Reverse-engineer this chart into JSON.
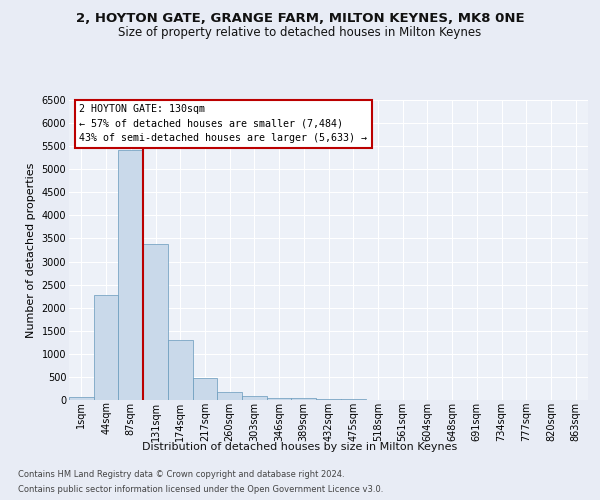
{
  "title1": "2, HOYTON GATE, GRANGE FARM, MILTON KEYNES, MK8 0NE",
  "title2": "Size of property relative to detached houses in Milton Keynes",
  "xlabel": "Distribution of detached houses by size in Milton Keynes",
  "ylabel": "Number of detached properties",
  "footer1": "Contains HM Land Registry data © Crown copyright and database right 2024.",
  "footer2": "Contains public sector information licensed under the Open Government Licence v3.0.",
  "categories": [
    "1sqm",
    "44sqm",
    "87sqm",
    "131sqm",
    "174sqm",
    "217sqm",
    "260sqm",
    "303sqm",
    "346sqm",
    "389sqm",
    "432sqm",
    "475sqm",
    "518sqm",
    "561sqm",
    "604sqm",
    "648sqm",
    "691sqm",
    "734sqm",
    "777sqm",
    "820sqm",
    "863sqm"
  ],
  "values": [
    75,
    2280,
    5420,
    3380,
    1300,
    475,
    165,
    85,
    50,
    35,
    20,
    15,
    10,
    8,
    5,
    4,
    3,
    2,
    2,
    1,
    1
  ],
  "bar_color": "#c9d9ea",
  "bar_edge_color": "#6699bb",
  "vline_color": "#bb0000",
  "annotation_line1": "2 HOYTON GATE: 130sqm",
  "annotation_line2": "← 57% of detached houses are smaller (7,484)",
  "annotation_line3": "43% of semi-detached houses are larger (5,633) →",
  "annotation_box_fc": "#ffffff",
  "annotation_box_ec": "#bb0000",
  "ylim": [
    0,
    6500
  ],
  "yticks": [
    0,
    500,
    1000,
    1500,
    2000,
    2500,
    3000,
    3500,
    4000,
    4500,
    5000,
    5500,
    6000,
    6500
  ],
  "bg_color": "#e8ecf5",
  "plot_bg": "#edf1f8",
  "grid_color": "#ffffff",
  "title1_fontsize": 9.5,
  "title2_fontsize": 8.5,
  "axis_label_fontsize": 8,
  "tick_fontsize": 7,
  "footer_fontsize": 6
}
